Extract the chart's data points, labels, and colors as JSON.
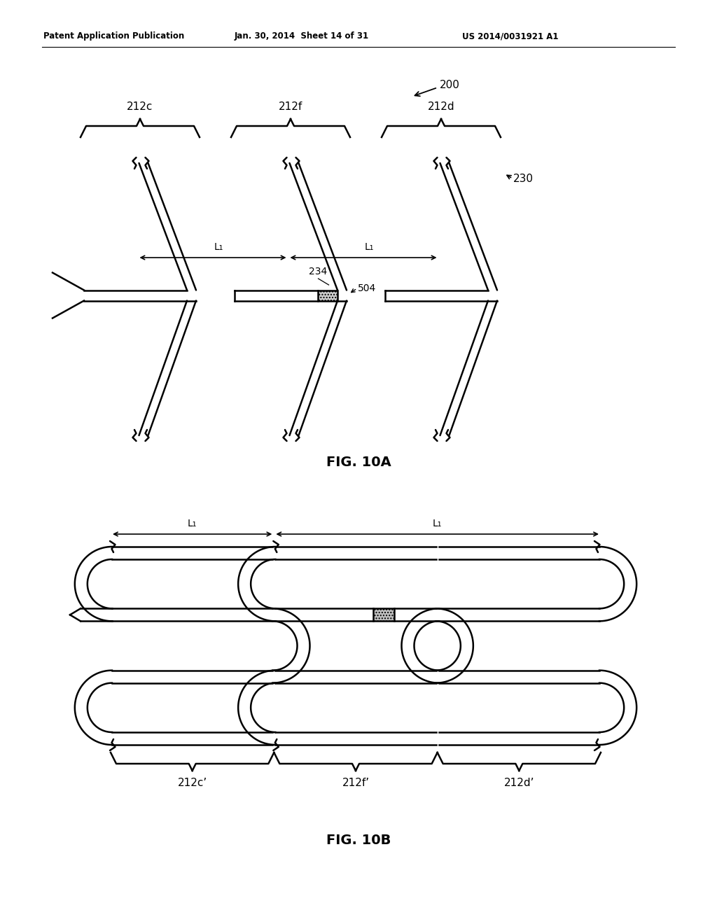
{
  "header_left": "Patent Application Publication",
  "header_mid": "Jan. 30, 2014  Sheet 14 of 31",
  "header_right": "US 2014/0031921 A1",
  "label_200": "200",
  "label_212c": "212c",
  "label_212f": "212f",
  "label_212d": "212d",
  "label_230": "230",
  "label_234": "234",
  "label_504": "504",
  "label_L1_a": "L₁",
  "label_L1_b": "L₁",
  "fig_10a": "FIG. 10A",
  "label_212c_prime": "212c’",
  "label_212f_prime": "212f’",
  "label_212d_prime": "212d’",
  "label_L1_c": "L₁",
  "label_L1_d": "L₁",
  "fig_10b": "FIG. 10B",
  "bg_color": "#ffffff",
  "line_color": "#000000",
  "lw": 1.8
}
